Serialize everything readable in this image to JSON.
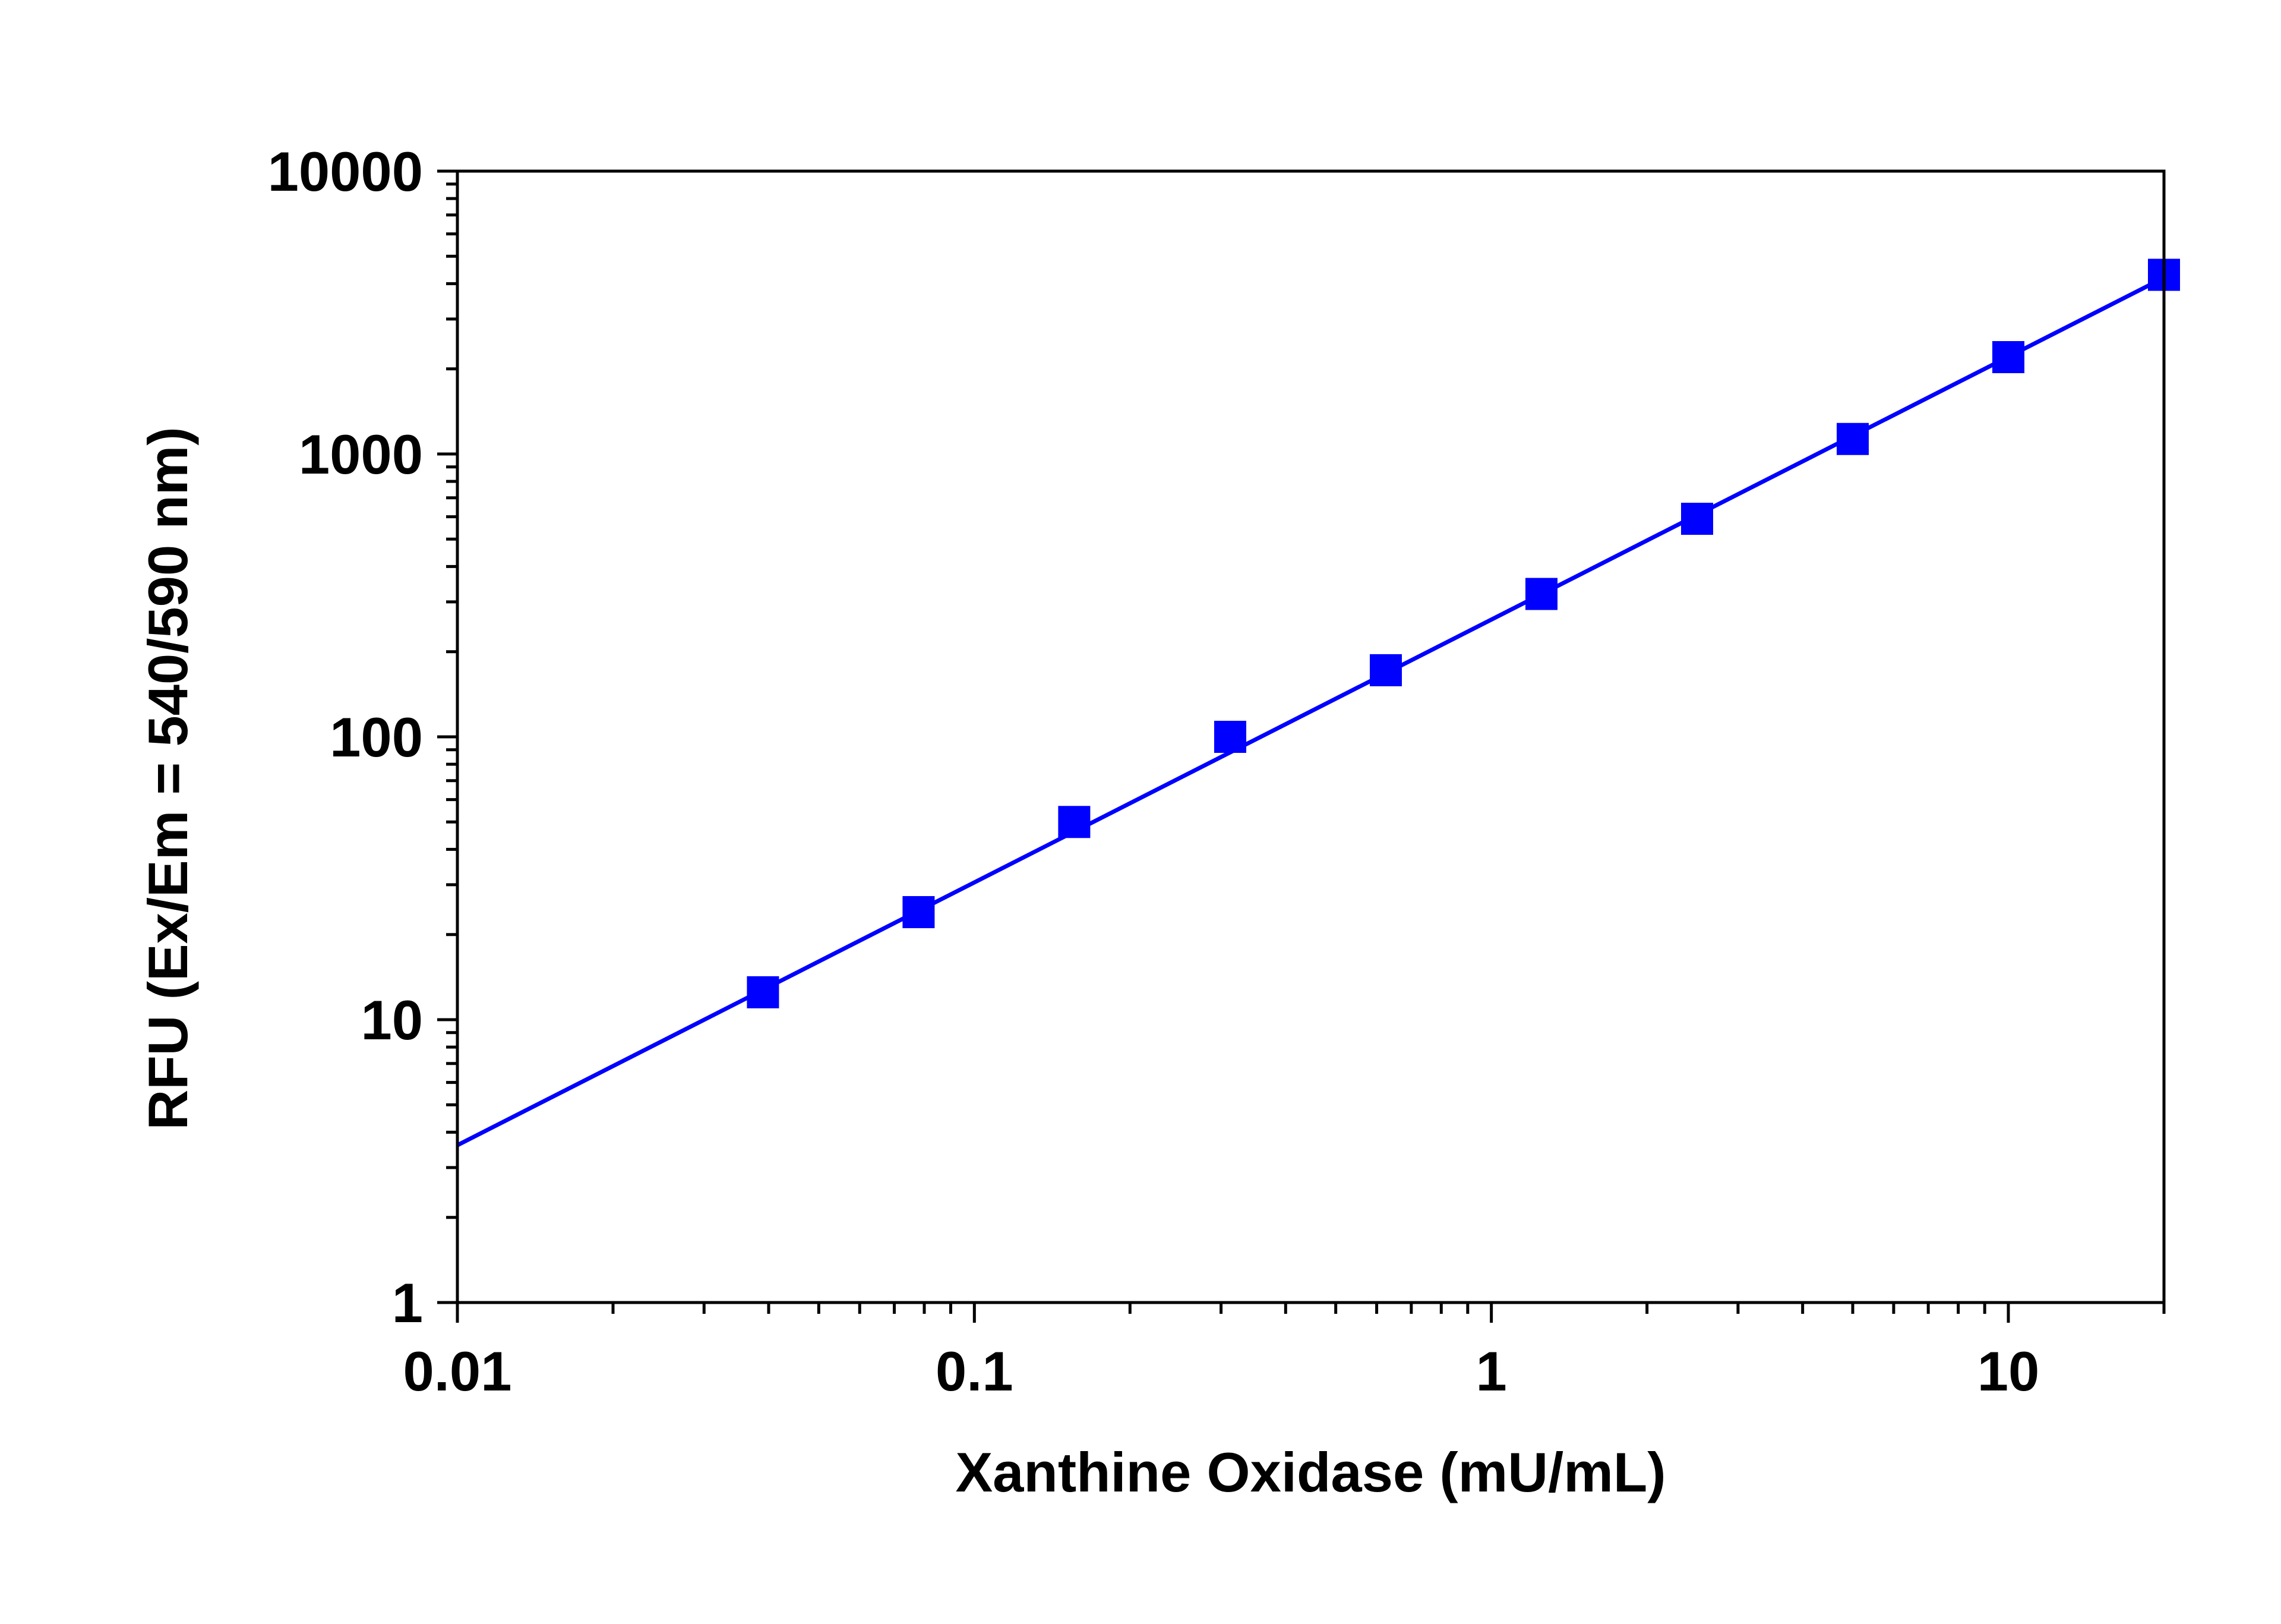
{
  "chart_data": {
    "type": "scatter",
    "title": "",
    "xlabel": "Xanthine Oxidase (mU/mL)",
    "ylabel": "RFU (Ex/Em = 540/590 nm)",
    "x_scale": "log",
    "y_scale": "log",
    "xlim": [
      0.01,
      20
    ],
    "ylim": [
      1,
      10000
    ],
    "x_tick_values": [
      0.01,
      0.1,
      1,
      10
    ],
    "x_tick_labels": [
      "0.01",
      "0.1",
      "1",
      "10"
    ],
    "y_tick_values": [
      1,
      10,
      100,
      1000,
      10000
    ],
    "y_tick_labels": [
      "1",
      "10",
      "100",
      "1000",
      "10000"
    ],
    "grid": false,
    "legend": "none",
    "series": [
      {
        "marker": "square",
        "color": "#0000ff",
        "x": [
          0.039,
          0.078,
          0.156,
          0.3125,
          0.625,
          1.25,
          2.5,
          5,
          10,
          20
        ],
        "y": [
          12.5,
          24,
          50,
          100,
          172,
          320,
          590,
          1130,
          2200,
          4300
        ]
      }
    ],
    "fit_line": {
      "color": "#0000ff",
      "x": [
        0.01,
        20
      ],
      "y": [
        3.6,
        4200
      ]
    }
  }
}
